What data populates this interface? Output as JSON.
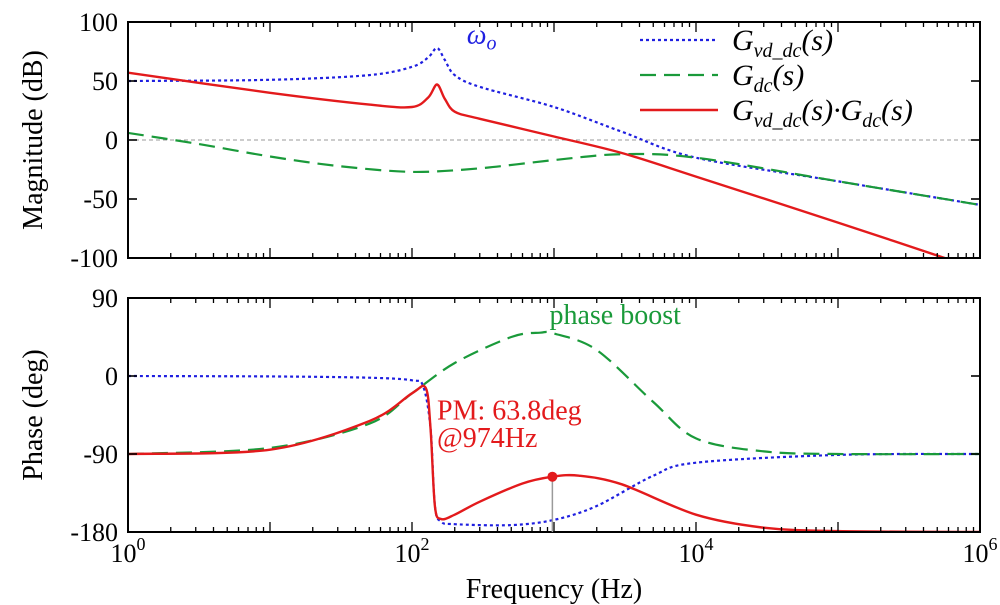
{
  "colors": {
    "gvd": "#1f1fe0",
    "gdc": "#1a9a3a",
    "prod": "#e31a1c",
    "marker": "#e31a1c",
    "zeroline": "#9a9a9a"
  },
  "chart_data": [
    {
      "type": "line",
      "panel": "magnitude",
      "ylabel": "Magnitude (dB)",
      "xscale": "log",
      "xlim": [
        1,
        1000000
      ],
      "ylim": [
        -100,
        100
      ],
      "yticks": [
        "100",
        "50",
        "0",
        "-50",
        "-100"
      ],
      "ytick_values": [
        100,
        50,
        0,
        -50,
        -100
      ],
      "grid": false,
      "zero_line": true,
      "legend": {
        "placement": "top-right",
        "entries": [
          {
            "base": "G",
            "sub": "vd_dc",
            "tail": "(s)",
            "style": "dotted",
            "color": "gvd"
          },
          {
            "base": "G",
            "sub": "dc",
            "tail": "(s)",
            "style": "dashed",
            "color": "gdc"
          },
          {
            "base": "G",
            "sub": "vd_dc",
            "tail": "(s)·",
            "base2": "G",
            "sub2": "dc",
            "tail2": "(s)",
            "style": "solid",
            "color": "prod"
          }
        ]
      },
      "annotations": [
        {
          "text_base": "ω",
          "text_sub": "o",
          "x": 170,
          "y": 80,
          "color": "gvd"
        }
      ],
      "series": [
        {
          "legend_index": 0,
          "style": "dotted",
          "x": [
            1,
            10,
            50,
            100,
            130,
            150,
            170,
            200,
            300,
            1000,
            3000,
            10000,
            100000,
            1000000
          ],
          "y": [
            50,
            51,
            55,
            62,
            70,
            78,
            68,
            55,
            45,
            28,
            7,
            -15,
            -35,
            -55
          ]
        },
        {
          "legend_index": 1,
          "style": "dashed",
          "x": [
            1,
            3,
            10,
            30,
            100,
            300,
            1000,
            3000,
            10000,
            100000,
            1000000
          ],
          "y": [
            6,
            -3,
            -14,
            -22,
            -27,
            -24,
            -17,
            -12,
            -15,
            -35,
            -55
          ]
        },
        {
          "legend_index": 2,
          "style": "solid",
          "x": [
            1,
            10,
            50,
            100,
            130,
            150,
            170,
            200,
            300,
            1000,
            3000,
            10000,
            100000,
            1000000
          ],
          "y": [
            57,
            40,
            30,
            28,
            36,
            47,
            35,
            24,
            18,
            3,
            -11,
            -31,
            -70,
            -110
          ]
        }
      ]
    },
    {
      "type": "line",
      "panel": "phase",
      "title": "",
      "xlabel": "Frequency  (Hz)",
      "ylabel": "Phase (deg)",
      "xscale": "log",
      "xlim": [
        1,
        1000000
      ],
      "ylim": [
        -180,
        90
      ],
      "yticks": [
        "90",
        "0",
        "-90",
        "-180"
      ],
      "ytick_values": [
        90,
        0,
        -90,
        -180
      ],
      "xticks": [
        {
          "value": 1,
          "base": "10",
          "exp": "0"
        },
        {
          "value": 100,
          "base": "10",
          "exp": "2"
        },
        {
          "value": 10000,
          "base": "10",
          "exp": "4"
        },
        {
          "value": 1000000,
          "base": "10",
          "exp": "6"
        }
      ],
      "grid": false,
      "annotations": [
        {
          "text": "phase boost",
          "x": 4000,
          "y": 60,
          "color": "gdc"
        },
        {
          "text": "PM: 63.8deg",
          "x": 150,
          "y": -50,
          "color": "prod"
        },
        {
          "text": "@974Hz",
          "x": 150,
          "y": -82,
          "color": "prod"
        }
      ],
      "marker": {
        "x": 974,
        "y": -116.2
      },
      "series": [
        {
          "legend_index": 0,
          "style": "dotted",
          "x": [
            1,
            10,
            50,
            100,
            120,
            135,
            145,
            160,
            200,
            500,
            1000,
            2000,
            5000,
            10000,
            100000,
            1000000
          ],
          "y": [
            0,
            -0.5,
            -2,
            -5,
            -12,
            -60,
            -150,
            -168,
            -171,
            -172,
            -166,
            -150,
            -115,
            -100,
            -91,
            -90
          ]
        },
        {
          "legend_index": 1,
          "style": "dashed",
          "x": [
            1,
            10,
            50,
            100,
            200,
            500,
            800,
            1000,
            2000,
            5000,
            10000,
            30000,
            100000,
            1000000
          ],
          "y": [
            -90,
            -83,
            -55,
            -20,
            15,
            45,
            50,
            49,
            30,
            -30,
            -72,
            -87,
            -90,
            -90
          ]
        },
        {
          "legend_index": 2,
          "style": "solid",
          "x": [
            1,
            10,
            50,
            100,
            125,
            135,
            145,
            160,
            200,
            300,
            600,
            974,
            1500,
            3000,
            10000,
            30000,
            100000,
            1000000
          ],
          "y": [
            -90,
            -85,
            -52,
            -20,
            -14,
            -60,
            -150,
            -165,
            -160,
            -145,
            -124,
            -116.2,
            -115,
            -125,
            -160,
            -175,
            -179,
            -180
          ]
        }
      ]
    }
  ]
}
